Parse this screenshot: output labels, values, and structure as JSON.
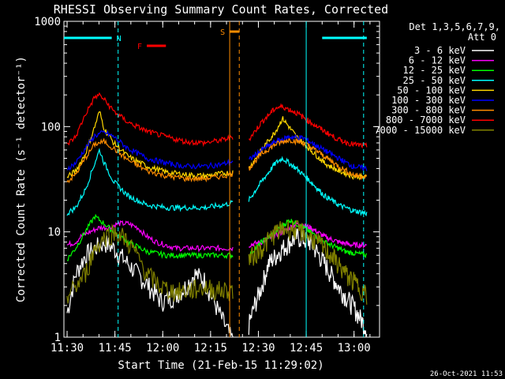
{
  "chart_data": {
    "type": "line",
    "title": "RHESSI Observing Summary Count Rates, Corrected",
    "xlabel": "Start Time (21-Feb-15 11:29:02)",
    "ylabel": "Corrected Count Rate (s⁻¹ detector⁻¹)",
    "y_scale": "log",
    "ylim": [
      1,
      1000
    ],
    "xlim": [
      "11:29",
      "13:08"
    ],
    "x_ticks": [
      "11:30",
      "11:45",
      "12:00",
      "12:15",
      "12:30",
      "12:45",
      "13:00"
    ],
    "y_ticks": [
      "1",
      "10",
      "100",
      "1000"
    ],
    "legend_header": [
      "Det 1,3,5,6,7,9,",
      "Att 0"
    ],
    "legend_position": "right",
    "timestamp": "26-Oct-2021 11:53",
    "data_gap": [
      "12:22",
      "12:27"
    ],
    "flag_bars": [
      {
        "label": "N",
        "color": "#00ffff",
        "segments": [
          [
            "11:29",
            "11:44"
          ],
          [
            "12:50",
            "13:04"
          ]
        ]
      },
      {
        "label": "F",
        "color": "#ff0000",
        "segments": [
          [
            "11:55",
            "12:01"
          ]
        ]
      },
      {
        "label": "S",
        "color": "#ff8c00",
        "segments": [
          [
            "12:21",
            "12:24"
          ]
        ]
      }
    ],
    "vertical_lines": [
      {
        "time": "11:46",
        "color": "#00ffff",
        "style": "dashed"
      },
      {
        "time": "12:45",
        "color": "#00ffff",
        "style": "solid"
      },
      {
        "time": "13:03",
        "color": "#00ffff",
        "style": "dashed"
      },
      {
        "time": "12:21",
        "color": "#ff8c00",
        "style": "solid"
      },
      {
        "time": "12:24",
        "color": "#ff8c00",
        "style": "dashed"
      }
    ],
    "series": [
      {
        "name": "3 - 6 keV",
        "color": "#ffffff",
        "values": [
          [
            0.6,
            1.7
          ],
          [
            1,
            2.5
          ],
          [
            1.5,
            4
          ],
          [
            2.5,
            6
          ],
          [
            3.5,
            7
          ],
          [
            4.5,
            8
          ],
          [
            5.5,
            7
          ],
          [
            7,
            5
          ],
          [
            9,
            3.2
          ],
          [
            10.5,
            2.2
          ],
          [
            12,
            2.5
          ],
          [
            13,
            3
          ],
          [
            14,
            4
          ],
          [
            15,
            3.5
          ],
          [
            16,
            2.2
          ],
          [
            17,
            1.4
          ],
          [
            18,
            0.9
          ]
        ],
        "values2": [
          [
            0.6,
            1.3
          ],
          [
            1,
            2
          ],
          [
            1.5,
            3
          ],
          [
            2,
            5
          ],
          [
            3,
            7
          ],
          [
            4,
            9
          ],
          [
            5,
            8
          ],
          [
            6,
            5
          ],
          [
            7,
            3
          ],
          [
            8,
            2
          ],
          [
            9,
            1.2
          ]
        ]
      },
      {
        "name": "6 - 12 keV",
        "color": "#ff00ff",
        "values": [
          [
            0.6,
            7.5
          ],
          [
            1.5,
            8
          ],
          [
            2,
            9
          ],
          [
            3,
            10
          ],
          [
            4,
            11
          ],
          [
            5,
            11
          ],
          [
            6,
            12
          ],
          [
            7,
            12
          ],
          [
            8,
            11
          ],
          [
            9,
            9
          ],
          [
            10,
            8
          ],
          [
            11,
            7.5
          ],
          [
            12,
            7
          ],
          [
            13,
            7
          ],
          [
            14,
            7
          ],
          [
            15,
            7
          ],
          [
            16,
            7
          ],
          [
            17,
            7
          ],
          [
            18,
            7
          ]
        ],
        "values2": [
          [
            0.6,
            7.5
          ],
          [
            1.5,
            8
          ],
          [
            3,
            10
          ],
          [
            4,
            12
          ],
          [
            5,
            11
          ],
          [
            6,
            9
          ],
          [
            7,
            8
          ],
          [
            8,
            7.5
          ],
          [
            9,
            7.5
          ]
        ]
      },
      {
        "name": "12 - 25 keV",
        "color": "#00ff00",
        "values": [
          [
            0.6,
            5.5
          ],
          [
            1.5,
            7
          ],
          [
            2.5,
            10
          ],
          [
            3.5,
            14
          ],
          [
            4.5,
            12
          ],
          [
            5.5,
            10
          ],
          [
            7,
            8
          ],
          [
            9,
            6.5
          ],
          [
            11,
            6
          ],
          [
            13,
            6
          ],
          [
            15,
            6
          ],
          [
            17,
            6
          ],
          [
            18,
            6
          ]
        ],
        "values2": [
          [
            0.6,
            6
          ],
          [
            1.5,
            8
          ],
          [
            2.5,
            10
          ],
          [
            3.5,
            13
          ],
          [
            4.5,
            11
          ],
          [
            6,
            8
          ],
          [
            7.5,
            6.5
          ],
          [
            9,
            6
          ]
        ]
      },
      {
        "name": "25 - 50 keV",
        "color": "#00ffff",
        "values": [
          [
            0.6,
            15
          ],
          [
            1.5,
            17
          ],
          [
            2.5,
            25
          ],
          [
            3.5,
            45
          ],
          [
            4,
            60
          ],
          [
            4.5,
            45
          ],
          [
            5.5,
            30
          ],
          [
            7,
            22
          ],
          [
            9,
            18
          ],
          [
            11,
            17
          ],
          [
            13,
            17
          ],
          [
            15,
            17
          ],
          [
            17,
            18
          ],
          [
            18,
            19
          ]
        ],
        "values2": [
          [
            0.6,
            20
          ],
          [
            1.5,
            30
          ],
          [
            2.5,
            45
          ],
          [
            3,
            50
          ],
          [
            4,
            40
          ],
          [
            5,
            30
          ],
          [
            6,
            22
          ],
          [
            7,
            18
          ],
          [
            8,
            16
          ],
          [
            9,
            15
          ]
        ]
      },
      {
        "name": "50 - 100 keV",
        "color": "#ffd700",
        "values": [
          [
            0.6,
            33
          ],
          [
            1.5,
            38
          ],
          [
            2.5,
            55
          ],
          [
            3.5,
            100
          ],
          [
            4,
            140
          ],
          [
            4.5,
            95
          ],
          [
            5.5,
            70
          ],
          [
            7,
            52
          ],
          [
            9,
            42
          ],
          [
            11,
            37
          ],
          [
            13,
            35
          ],
          [
            15,
            34
          ],
          [
            17,
            36
          ],
          [
            18,
            37
          ]
        ],
        "values2": [
          [
            0.6,
            40
          ],
          [
            1.5,
            60
          ],
          [
            2.5,
            90
          ],
          [
            3,
            120
          ],
          [
            4,
            80
          ],
          [
            5,
            60
          ],
          [
            6,
            45
          ],
          [
            7,
            38
          ],
          [
            8,
            34
          ],
          [
            9,
            33
          ]
        ]
      },
      {
        "name": "100 - 300 keV",
        "color": "#0000ff",
        "values": [
          [
            0.6,
            40
          ],
          [
            1.5,
            45
          ],
          [
            2.5,
            62
          ],
          [
            3.5,
            82
          ],
          [
            4.5,
            88
          ],
          [
            5.5,
            80
          ],
          [
            7,
            62
          ],
          [
            9,
            50
          ],
          [
            11,
            45
          ],
          [
            13,
            42
          ],
          [
            15,
            42
          ],
          [
            17,
            44
          ],
          [
            18,
            47
          ]
        ],
        "values2": [
          [
            0.6,
            48
          ],
          [
            1.5,
            60
          ],
          [
            2.5,
            72
          ],
          [
            3.5,
            80
          ],
          [
            4.5,
            78
          ],
          [
            5.5,
            65
          ],
          [
            7,
            50
          ],
          [
            8,
            42
          ],
          [
            9,
            40
          ]
        ]
      },
      {
        "name": "300 - 800 keV",
        "color": "#ff8c00",
        "values": [
          [
            0.6,
            30
          ],
          [
            1.5,
            35
          ],
          [
            2.5,
            50
          ],
          [
            3.5,
            68
          ],
          [
            4.5,
            72
          ],
          [
            5.5,
            62
          ],
          [
            7,
            48
          ],
          [
            9,
            38
          ],
          [
            11,
            34
          ],
          [
            13,
            32
          ],
          [
            15,
            32
          ],
          [
            17,
            34
          ],
          [
            18,
            36
          ]
        ],
        "values2": [
          [
            0.6,
            40
          ],
          [
            1.5,
            55
          ],
          [
            2.5,
            68
          ],
          [
            3.5,
            75
          ],
          [
            4.5,
            70
          ],
          [
            5.5,
            58
          ],
          [
            7,
            42
          ],
          [
            8,
            35
          ],
          [
            9,
            33
          ]
        ]
      },
      {
        "name": "800 - 7000 keV",
        "color": "#ff0000",
        "values": [
          [
            0.6,
            68
          ],
          [
            1.5,
            80
          ],
          [
            2.5,
            130
          ],
          [
            3.5,
            190
          ],
          [
            4,
            200
          ],
          [
            4.5,
            180
          ],
          [
            5.5,
            140
          ],
          [
            7,
            110
          ],
          [
            9,
            90
          ],
          [
            11,
            80
          ],
          [
            13,
            72
          ],
          [
            15,
            70
          ],
          [
            17,
            75
          ],
          [
            18,
            80
          ]
        ],
        "values2": [
          [
            0.6,
            75
          ],
          [
            1.5,
            110
          ],
          [
            2.5,
            150
          ],
          [
            3,
            155
          ],
          [
            4,
            135
          ],
          [
            5,
            110
          ],
          [
            6,
            90
          ],
          [
            7,
            75
          ],
          [
            8,
            68
          ],
          [
            9,
            65
          ]
        ]
      },
      {
        "name": "7000 - 15000 keV",
        "color": "#808000",
        "values": [
          [
            0.6,
            2.5
          ],
          [
            1.5,
            3
          ],
          [
            2.5,
            4
          ],
          [
            3.5,
            7
          ],
          [
            4.5,
            9
          ],
          [
            5.5,
            10
          ],
          [
            6.5,
            9
          ],
          [
            7.5,
            7
          ],
          [
            9,
            4
          ],
          [
            10.5,
            3
          ],
          [
            12,
            2.7
          ],
          [
            13.5,
            2.8
          ],
          [
            15,
            3
          ],
          [
            16.5,
            2.8
          ],
          [
            18,
            2.8
          ]
        ],
        "values2": [
          [
            0.6,
            5.5
          ],
          [
            1.5,
            7
          ],
          [
            2.5,
            10
          ],
          [
            3.5,
            11
          ],
          [
            4.5,
            10
          ],
          [
            5.5,
            8
          ],
          [
            6.5,
            6
          ],
          [
            7.5,
            4
          ],
          [
            8.5,
            3
          ],
          [
            9,
            2.5
          ]
        ]
      }
    ]
  }
}
